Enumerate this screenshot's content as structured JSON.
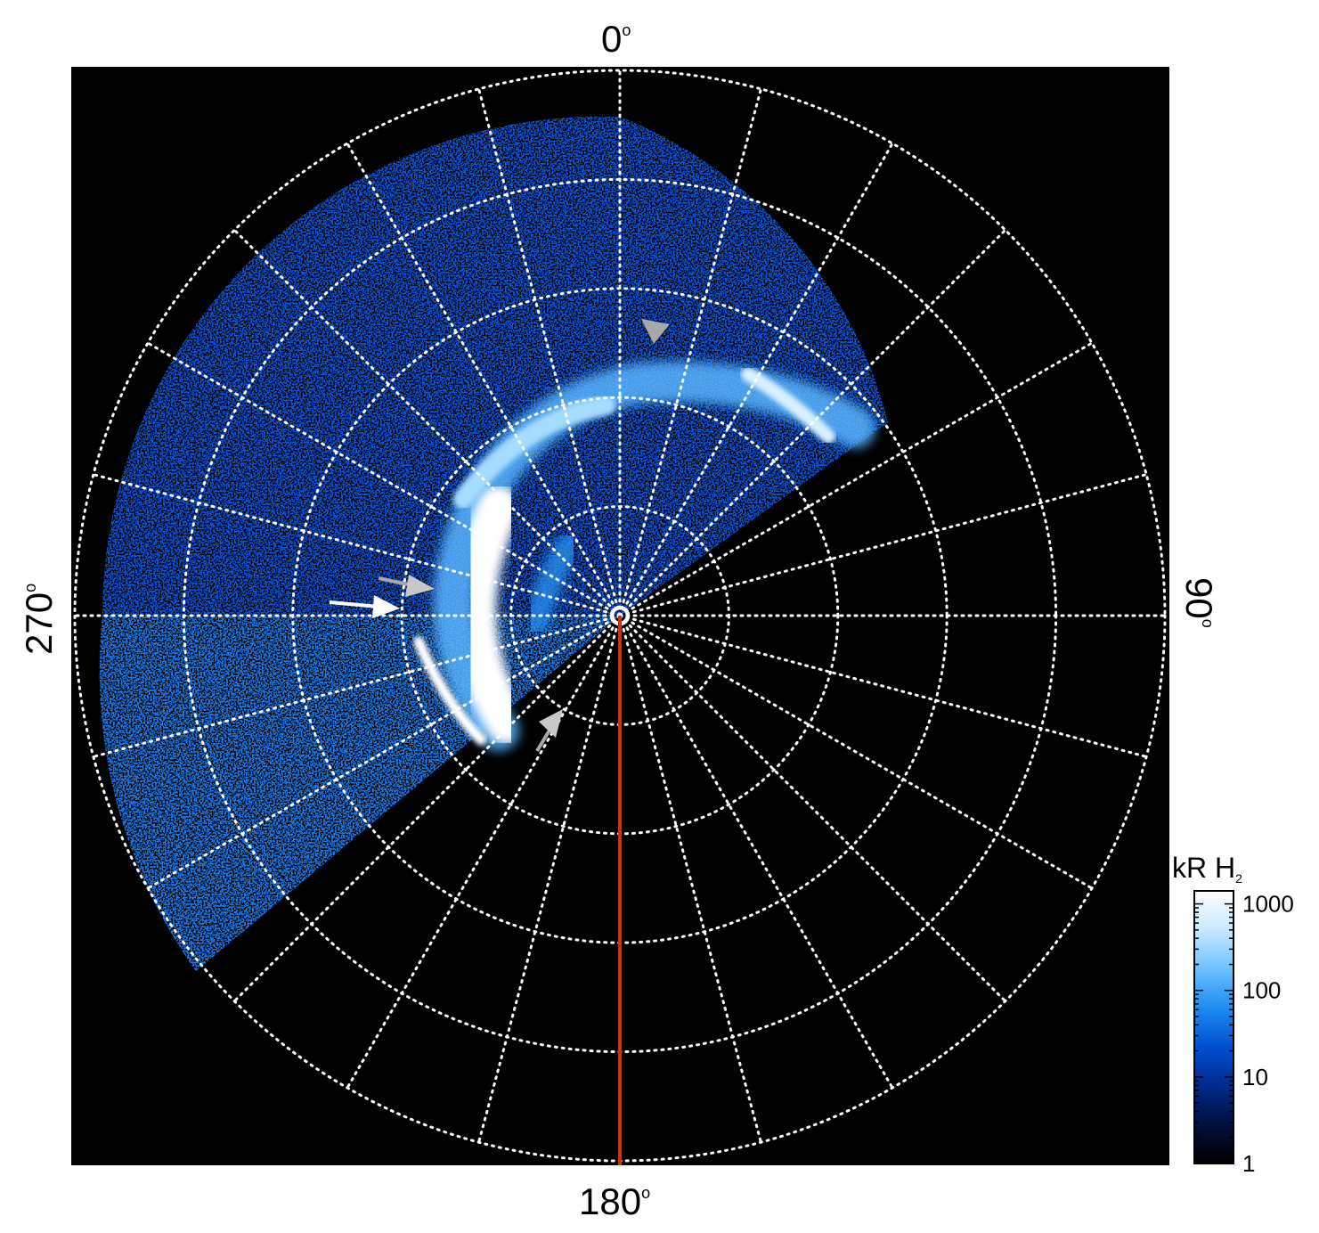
{
  "axis_labels": {
    "top": "0",
    "right": "90",
    "bottom": "180",
    "left": "270",
    "degree_symbol": "o"
  },
  "colorbar": {
    "title_main": "kR H",
    "title_sub": "2",
    "scale": "log",
    "ticks": [
      "1000",
      "100",
      "10",
      "1"
    ],
    "colormap": [
      "#000000",
      "#00103c",
      "#002a8c",
      "#0050d0",
      "#1e8cf0",
      "#6cc0ff",
      "#c8e8ff",
      "#ffffff"
    ]
  },
  "colors": {
    "background": "#000000",
    "grid": "#ffffff",
    "meridian_marker": "#d03010",
    "arrow_white": "#ffffff",
    "arrow_grey": "#a8a8a8"
  }
}
